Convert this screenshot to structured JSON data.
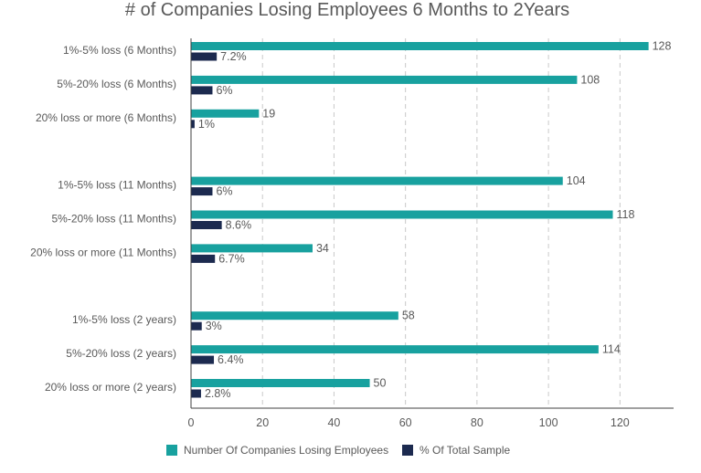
{
  "chart_data": {
    "type": "bar",
    "orientation": "horizontal",
    "title": "# of Companies Losing Employees 6 Months to 2Years",
    "categories": [
      "1%-5% loss (6 Months)",
      "5%-20% loss (6 Months)",
      "20% loss or more (6 Months)",
      "",
      "1%-5% loss (11 Months)",
      "5%-20% loss (11 Months)",
      "20% loss or more (11 Months)",
      "",
      "1%-5% loss (2 years)",
      "5%-20% loss (2 years)",
      "20% loss or more (2 years)"
    ],
    "series": [
      {
        "name": "Number Of Companies Losing Employees",
        "color": "#18a19f",
        "values": [
          128,
          108,
          19,
          null,
          104,
          118,
          34,
          null,
          58,
          114,
          50
        ],
        "labels": [
          "128",
          "108",
          "19",
          "",
          "104",
          "118",
          "34",
          "",
          "58",
          "114",
          "50"
        ]
      },
      {
        "name": "% Of Total Sample",
        "color": "#1c2a4f",
        "values": [
          7.2,
          6,
          1,
          null,
          6,
          8.6,
          6.7,
          null,
          3,
          6.4,
          2.8
        ],
        "labels": [
          "7.2%",
          "6%",
          "1%",
          "",
          "6%",
          "8.6%",
          "6.7%",
          "",
          "3%",
          "6.4%",
          "2.8%"
        ]
      }
    ],
    "xlim": [
      0,
      135
    ],
    "xticks": [
      0,
      20,
      40,
      60,
      80,
      100,
      120
    ],
    "xtick_labels": [
      "0",
      "20",
      "40",
      "60",
      "80",
      "100",
      "120"
    ],
    "grid": true,
    "legend_position": "bottom"
  }
}
